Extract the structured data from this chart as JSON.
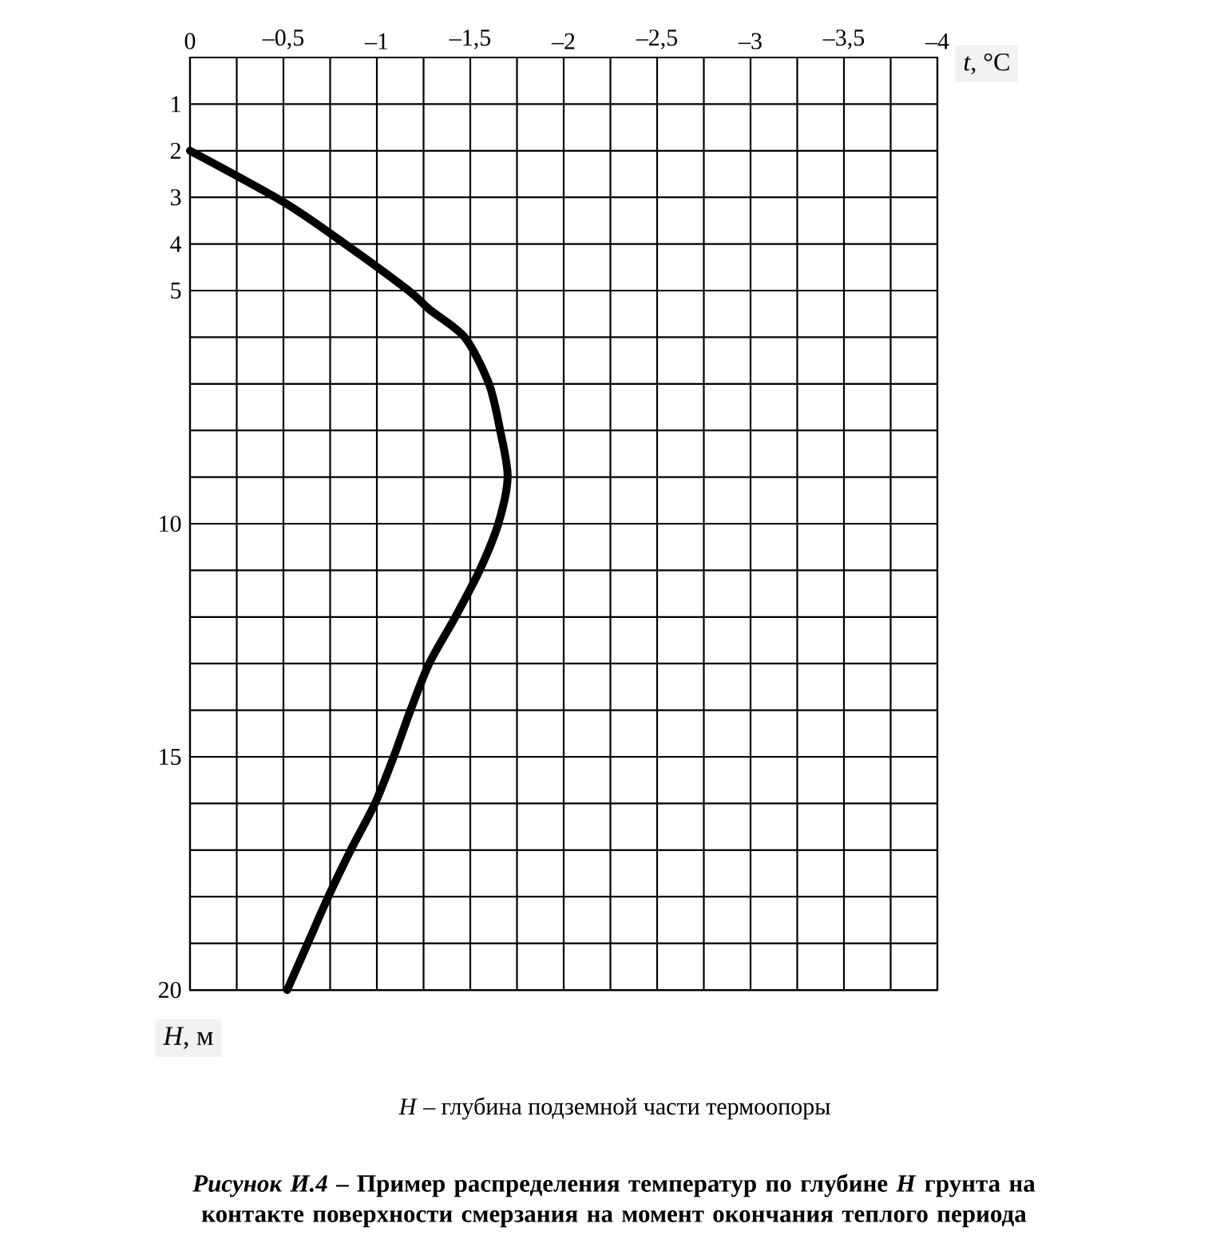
{
  "chart_data": {
    "type": "line",
    "title": "*Рисунок И.4* – Пример распределения температур по глубине *H* грунта на контакте поверхности смерзания на момент окончания теплого периода",
    "xlabel": "*t*, °C",
    "ylabel": "*H*, м",
    "annotations": [
      "*H* – глубина подземной части термоопоры"
    ],
    "xlim": [
      0,
      -4
    ],
    "ylim": [
      20,
      0
    ],
    "xticks": [
      0,
      {
        "value": -0.25,
        "label": null
      },
      {
        "value": -0.5,
        "label": "–0,5"
      },
      {
        "value": -0.75,
        "label": null
      },
      {
        "value": -1,
        "label": "–1"
      },
      {
        "value": -1.25,
        "label": null
      },
      {
        "value": -1.5,
        "label": "–1,5"
      },
      {
        "value": -1.75,
        "label": null
      },
      {
        "value": -2,
        "label": "–2"
      },
      {
        "value": -2.25,
        "label": null
      },
      {
        "value": -2.5,
        "label": "–2,5"
      },
      {
        "value": -2.75,
        "label": null
      },
      {
        "value": -3,
        "label": "–3"
      },
      {
        "value": -3.25,
        "label": null
      },
      {
        "value": -3.5,
        "label": "–3,5"
      },
      {
        "value": -3.75,
        "label": null
      },
      {
        "value": -4,
        "label": "–4"
      }
    ],
    "yticks": [
      1,
      2,
      3,
      4,
      5,
      {
        "value": 6,
        "label": null
      },
      {
        "value": 7,
        "label": null
      },
      {
        "value": 8,
        "label": null
      },
      {
        "value": 9,
        "label": null
      },
      10,
      {
        "value": 11,
        "label": null
      },
      {
        "value": 12,
        "label": null
      },
      {
        "value": 13,
        "label": null
      },
      {
        "value": 14,
        "label": null
      },
      15,
      {
        "value": 16,
        "label": null
      },
      {
        "value": 17,
        "label": null
      },
      {
        "value": 18,
        "label": null
      },
      {
        "value": 19,
        "label": null
      },
      20
    ],
    "grid": true,
    "series": [
      {
        "color": "#000000",
        "x": [
          0,
          -0.5,
          -0.83,
          -1.17,
          -1.28,
          -1.47,
          -1.6,
          -1.66,
          -1.7,
          -1.65,
          -1.55,
          -1.42,
          -1.28,
          -1.18,
          -1.09,
          -0.99,
          -0.86,
          -0.74,
          -0.63,
          -0.52
        ],
        "values": [
          2,
          3.1,
          4,
          5,
          5.4,
          6,
          7,
          8,
          9,
          10,
          11,
          12,
          13,
          14,
          15,
          16,
          17,
          18,
          19,
          20
        ]
      }
    ]
  }
}
